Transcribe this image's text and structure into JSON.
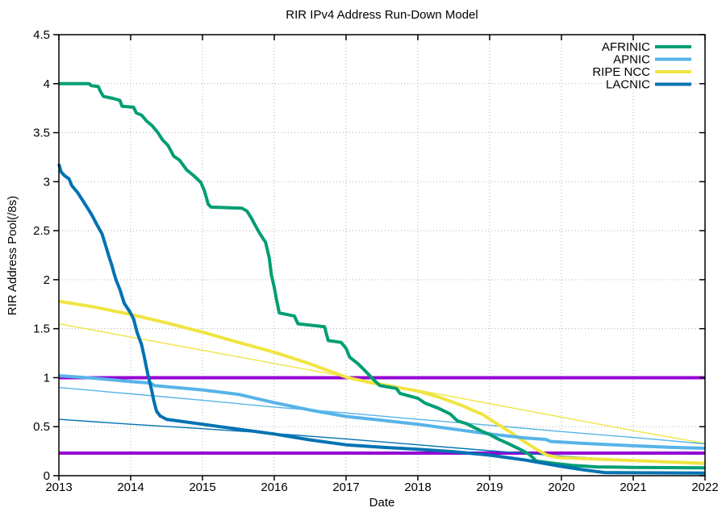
{
  "chart_data": {
    "type": "line",
    "title": "RIR IPv4 Address Run-Down Model",
    "xlabel": "Date",
    "ylabel": "RIR Address Pool(/8s)",
    "xlim": [
      2013,
      2022
    ],
    "ylim": [
      0,
      4.5
    ],
    "xticks": [
      2013,
      2014,
      2015,
      2016,
      2017,
      2018,
      2019,
      2020,
      2021,
      2022
    ],
    "yticks": [
      0,
      0.5,
      1,
      1.5,
      2,
      2.5,
      3,
      3.5,
      4,
      4.5
    ],
    "grid": true,
    "grid_color": "#b0b0b0",
    "legend_position": "top-right-inside",
    "legend": [
      {
        "label": "AFRINIC",
        "color": "#009e73"
      },
      {
        "label": "APNIC",
        "color": "#56b4e9"
      },
      {
        "label": "RIPE NCC",
        "color": "#f0e442"
      },
      {
        "label": "LACNIC",
        "color": "#0072b2"
      }
    ],
    "threshold_lines": [
      {
        "y": 1.0,
        "color": "#9400d3",
        "width": 4
      },
      {
        "y": 0.23,
        "color": "#9400d3",
        "width": 4
      }
    ],
    "series": [
      {
        "name": "RIPE NCC model",
        "color": "#f0e442",
        "width": 1.4,
        "role": "model",
        "points": [
          [
            2013,
            1.55
          ],
          [
            2015,
            1.28
          ],
          [
            2017,
            1.01
          ],
          [
            2019,
            0.735
          ],
          [
            2021,
            0.46
          ],
          [
            2022,
            0.33
          ]
        ]
      },
      {
        "name": "APNIC model",
        "color": "#56b4e9",
        "width": 1.4,
        "role": "model",
        "points": [
          [
            2013,
            0.9
          ],
          [
            2014,
            0.835
          ],
          [
            2015,
            0.77
          ],
          [
            2016,
            0.7
          ],
          [
            2017,
            0.64
          ],
          [
            2018,
            0.575
          ],
          [
            2019,
            0.515
          ],
          [
            2020,
            0.45
          ],
          [
            2021,
            0.39
          ],
          [
            2022,
            0.325
          ]
        ]
      },
      {
        "name": "LACNIC model",
        "color": "#0072b2",
        "width": 1.4,
        "role": "model",
        "points": [
          [
            2013,
            0.575
          ],
          [
            2014,
            0.525
          ],
          [
            2015,
            0.48
          ],
          [
            2016,
            0.43
          ],
          [
            2017,
            0.375
          ],
          [
            2018,
            0.315
          ],
          [
            2019,
            0.255
          ],
          [
            2020,
            0.2
          ],
          [
            2021,
            0.155
          ],
          [
            2022,
            0.115
          ]
        ]
      },
      {
        "name": "RIPE NCC",
        "color": "#f0e442",
        "width": 4,
        "role": "actual",
        "points": [
          [
            2013.0,
            1.78
          ],
          [
            2013.5,
            1.72
          ],
          [
            2014.0,
            1.645
          ],
          [
            2014.5,
            1.56
          ],
          [
            2015.0,
            1.465
          ],
          [
            2015.5,
            1.36
          ],
          [
            2016.0,
            1.26
          ],
          [
            2016.5,
            1.14
          ],
          [
            2017.0,
            1.005
          ],
          [
            2017.3,
            0.955
          ],
          [
            2017.6,
            0.915
          ],
          [
            2018.0,
            0.865
          ],
          [
            2018.3,
            0.8
          ],
          [
            2018.6,
            0.72
          ],
          [
            2018.9,
            0.625
          ],
          [
            2019.1,
            0.53
          ],
          [
            2019.3,
            0.44
          ],
          [
            2019.5,
            0.34
          ],
          [
            2019.65,
            0.27
          ],
          [
            2019.8,
            0.21
          ],
          [
            2019.95,
            0.185
          ],
          [
            2020.3,
            0.175
          ],
          [
            2021.0,
            0.155
          ],
          [
            2021.5,
            0.14
          ],
          [
            2022.0,
            0.125
          ]
        ]
      },
      {
        "name": "APNIC",
        "color": "#56b4e9",
        "width": 4,
        "role": "actual",
        "points": [
          [
            2013.0,
            1.02
          ],
          [
            2013.5,
            0.995
          ],
          [
            2014.0,
            0.96
          ],
          [
            2014.28,
            0.945
          ],
          [
            2014.33,
            0.92
          ],
          [
            2015.0,
            0.875
          ],
          [
            2015.5,
            0.83
          ],
          [
            2016.0,
            0.745
          ],
          [
            2016.5,
            0.67
          ],
          [
            2017.0,
            0.605
          ],
          [
            2017.5,
            0.565
          ],
          [
            2018.0,
            0.525
          ],
          [
            2018.5,
            0.475
          ],
          [
            2019.0,
            0.425
          ],
          [
            2019.5,
            0.385
          ],
          [
            2019.78,
            0.37
          ],
          [
            2019.85,
            0.35
          ],
          [
            2020.3,
            0.33
          ],
          [
            2021.0,
            0.305
          ],
          [
            2021.5,
            0.29
          ],
          [
            2022.0,
            0.28
          ]
        ]
      },
      {
        "name": "AFRINIC",
        "color": "#009e73",
        "width": 4,
        "role": "actual",
        "points": [
          [
            2013.0,
            4.0
          ],
          [
            2013.42,
            4.0
          ],
          [
            2013.45,
            3.98
          ],
          [
            2013.55,
            3.97
          ],
          [
            2013.58,
            3.92
          ],
          [
            2013.62,
            3.87
          ],
          [
            2013.75,
            3.85
          ],
          [
            2013.85,
            3.83
          ],
          [
            2013.88,
            3.77
          ],
          [
            2014.04,
            3.76
          ],
          [
            2014.08,
            3.7
          ],
          [
            2014.15,
            3.68
          ],
          [
            2014.22,
            3.62
          ],
          [
            2014.3,
            3.57
          ],
          [
            2014.38,
            3.5
          ],
          [
            2014.44,
            3.43
          ],
          [
            2014.52,
            3.37
          ],
          [
            2014.6,
            3.26
          ],
          [
            2014.68,
            3.22
          ],
          [
            2014.78,
            3.12
          ],
          [
            2014.88,
            3.06
          ],
          [
            2014.98,
            2.99
          ],
          [
            2015.03,
            2.9
          ],
          [
            2015.08,
            2.77
          ],
          [
            2015.12,
            2.74
          ],
          [
            2015.55,
            2.73
          ],
          [
            2015.62,
            2.7
          ],
          [
            2015.68,
            2.63
          ],
          [
            2015.73,
            2.56
          ],
          [
            2015.8,
            2.47
          ],
          [
            2015.88,
            2.38
          ],
          [
            2015.93,
            2.22
          ],
          [
            2015.96,
            2.05
          ],
          [
            2016.0,
            1.92
          ],
          [
            2016.03,
            1.8
          ],
          [
            2016.07,
            1.66
          ],
          [
            2016.28,
            1.63
          ],
          [
            2016.33,
            1.55
          ],
          [
            2016.7,
            1.52
          ],
          [
            2016.75,
            1.38
          ],
          [
            2016.93,
            1.36
          ],
          [
            2017.0,
            1.3
          ],
          [
            2017.05,
            1.21
          ],
          [
            2017.17,
            1.14
          ],
          [
            2017.28,
            1.06
          ],
          [
            2017.37,
            0.99
          ],
          [
            2017.47,
            0.92
          ],
          [
            2017.7,
            0.89
          ],
          [
            2017.75,
            0.84
          ],
          [
            2018.0,
            0.79
          ],
          [
            2018.1,
            0.74
          ],
          [
            2018.28,
            0.69
          ],
          [
            2018.45,
            0.63
          ],
          [
            2018.55,
            0.56
          ],
          [
            2018.68,
            0.53
          ],
          [
            2018.9,
            0.45
          ],
          [
            2019.0,
            0.42
          ],
          [
            2019.1,
            0.38
          ],
          [
            2019.28,
            0.32
          ],
          [
            2019.42,
            0.27
          ],
          [
            2019.55,
            0.22
          ],
          [
            2019.65,
            0.15
          ],
          [
            2019.85,
            0.13
          ],
          [
            2020.15,
            0.105
          ],
          [
            2020.5,
            0.09
          ],
          [
            2021.0,
            0.085
          ],
          [
            2022.0,
            0.08
          ]
        ]
      },
      {
        "name": "LACNIC",
        "color": "#0072b2",
        "width": 4,
        "role": "actual",
        "points": [
          [
            2013.0,
            3.18
          ],
          [
            2013.03,
            3.1
          ],
          [
            2013.08,
            3.06
          ],
          [
            2013.14,
            3.03
          ],
          [
            2013.18,
            2.96
          ],
          [
            2013.26,
            2.89
          ],
          [
            2013.33,
            2.81
          ],
          [
            2013.4,
            2.73
          ],
          [
            2013.46,
            2.66
          ],
          [
            2013.53,
            2.56
          ],
          [
            2013.6,
            2.47
          ],
          [
            2013.65,
            2.35
          ],
          [
            2013.7,
            2.23
          ],
          [
            2013.74,
            2.14
          ],
          [
            2013.77,
            2.06
          ],
          [
            2013.8,
            1.99
          ],
          [
            2013.85,
            1.9
          ],
          [
            2013.91,
            1.76
          ],
          [
            2013.99,
            1.67
          ],
          [
            2014.04,
            1.6
          ],
          [
            2014.09,
            1.46
          ],
          [
            2014.15,
            1.34
          ],
          [
            2014.19,
            1.21
          ],
          [
            2014.24,
            1.03
          ],
          [
            2014.29,
            0.88
          ],
          [
            2014.32,
            0.77
          ],
          [
            2014.36,
            0.66
          ],
          [
            2014.41,
            0.61
          ],
          [
            2014.5,
            0.575
          ],
          [
            2015.0,
            0.525
          ],
          [
            2015.5,
            0.475
          ],
          [
            2016.0,
            0.425
          ],
          [
            2016.5,
            0.365
          ],
          [
            2017.0,
            0.315
          ],
          [
            2017.5,
            0.29
          ],
          [
            2018.0,
            0.27
          ],
          [
            2018.5,
            0.245
          ],
          [
            2019.0,
            0.21
          ],
          [
            2019.5,
            0.16
          ],
          [
            2019.8,
            0.12
          ],
          [
            2020.0,
            0.095
          ],
          [
            2020.3,
            0.06
          ],
          [
            2020.6,
            0.032
          ],
          [
            2021.0,
            0.03
          ],
          [
            2022.0,
            0.027
          ]
        ]
      }
    ]
  }
}
